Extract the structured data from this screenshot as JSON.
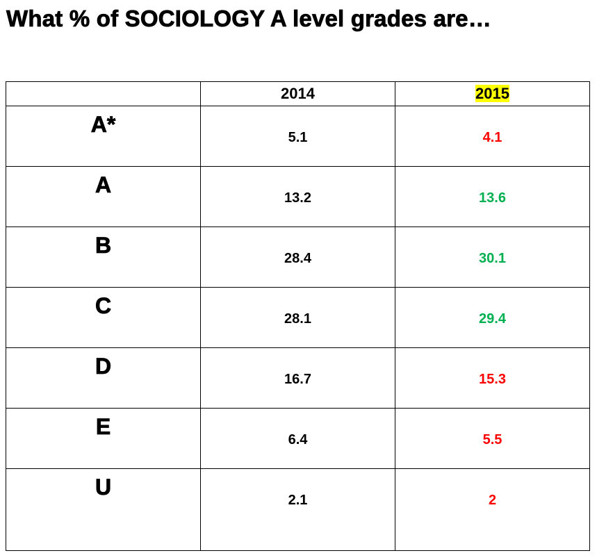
{
  "header": {
    "title": "What % of SOCIOLOGY A level grades are…"
  },
  "table": {
    "columns": [
      "2014",
      "2015"
    ],
    "highlight_column": 1,
    "highlight_color": "#ffff00",
    "rows": [
      {
        "grade": "A*",
        "values": [
          5.1,
          4.1
        ],
        "color": "#ff0000"
      },
      {
        "grade": "A",
        "values": [
          13.2,
          13.6
        ],
        "color": "#00b050"
      },
      {
        "grade": "B",
        "values": [
          28.4,
          30.1
        ],
        "color": "#00b050"
      },
      {
        "grade": "C",
        "values": [
          28.1,
          29.4
        ],
        "color": "#00b050"
      },
      {
        "grade": "D",
        "values": [
          16.7,
          15.3
        ],
        "color": "#ff0000"
      },
      {
        "grade": "E",
        "values": [
          6.4,
          5.5
        ],
        "color": "#ff0000"
      },
      {
        "grade": "U",
        "values": [
          2.1,
          2
        ],
        "color": "#ff0000"
      }
    ]
  }
}
